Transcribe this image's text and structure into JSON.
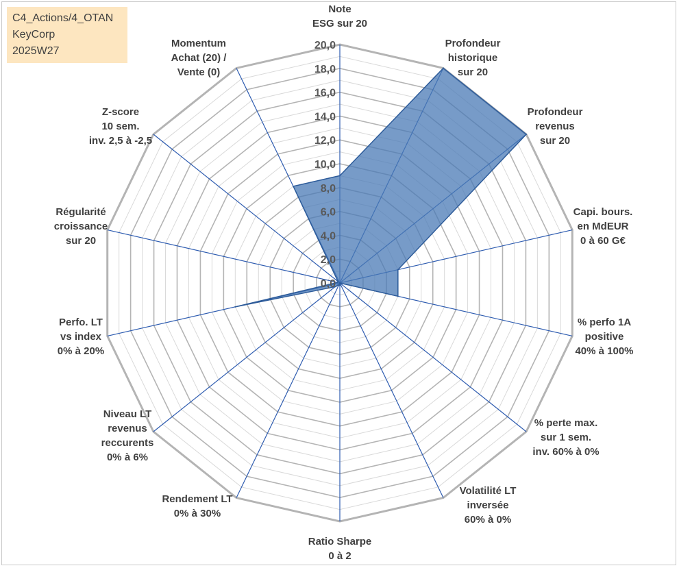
{
  "info": {
    "line1": "C4_Actions/4_OTAN",
    "line2": "KeyCorp",
    "line3": "2025W27"
  },
  "chart_data": {
    "type": "radar",
    "title": "",
    "axes": [
      [
        "Note",
        "ESG sur 20"
      ],
      [
        "Profondeur",
        "historique",
        "sur 20"
      ],
      [
        "Profondeur",
        "revenus",
        "sur 20"
      ],
      [
        "Capi. bours.",
        "en MdEUR",
        "0 à 60 G€"
      ],
      [
        "% perfo 1A",
        "positive",
        "40% à 100%"
      ],
      [
        "% perte max.",
        "sur 1 sem.",
        "inv. 60% à 0%"
      ],
      [
        "Volatilité LT",
        "inversée",
        "60% à 0%"
      ],
      [
        "Ratio Sharpe",
        "0 à 2"
      ],
      [
        "Rendement LT",
        "0% à 30%"
      ],
      [
        "Niveau LT",
        "revenus",
        "reccurents",
        "0% à 6%"
      ],
      [
        "Perfo. LT",
        "vs index",
        "0% à 20%"
      ],
      [
        "Régularité",
        "croissance",
        "sur 20"
      ],
      [
        "Z-score",
        "10 sem.",
        "inv. 2,5 à -2,5"
      ],
      [
        "Momentum",
        "Achat (20) /",
        "Vente (0)"
      ]
    ],
    "rlim": [
      0,
      20
    ],
    "ticks": [
      "0,0",
      "2,0",
      "4,0",
      "6,0",
      "8,0",
      "10,0",
      "12,0",
      "14,0",
      "16,0",
      "18,0",
      "20,0"
    ],
    "series": [
      {
        "values": [
          9.0,
          20.0,
          20.0,
          5.0,
          5.0,
          0,
          0,
          0.2,
          0.2,
          0.5,
          9.0,
          0.2,
          0.2,
          9.0
        ]
      }
    ],
    "fill_color": "#4a7ab5",
    "line_color": "#2e5c9a",
    "grid_color": "#b4b4b4",
    "spoke_color": "#2e5cb0",
    "grid": true,
    "legend": "none"
  }
}
